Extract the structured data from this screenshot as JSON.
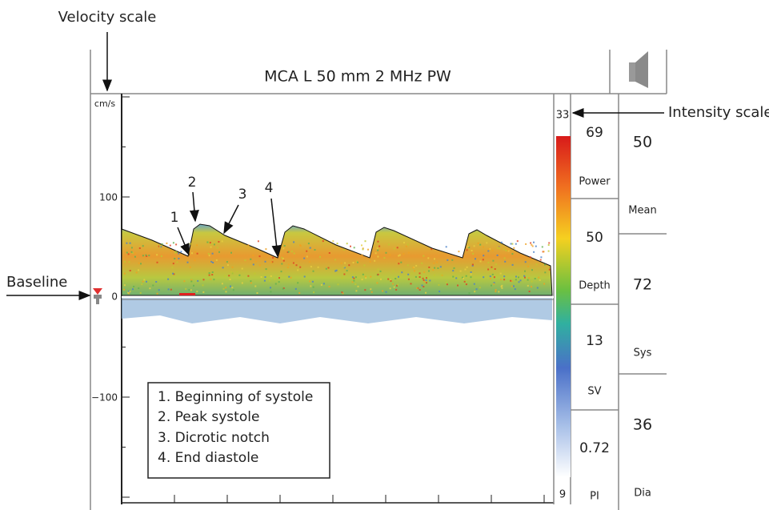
{
  "annotations": {
    "velocity_scale": "Velocity scale",
    "intensity_scale": "Intensity scale",
    "baseline": "Baseline"
  },
  "header": {
    "title": "MCA L 50 mm 2 MHz PW"
  },
  "velocity_axis": {
    "unit": "cm/s",
    "ticks": [
      "100",
      "0",
      "−100"
    ]
  },
  "intensity_scale": {
    "max": "33",
    "min": "9"
  },
  "parameters": [
    {
      "value": "69",
      "label": "Power"
    },
    {
      "value": "50",
      "label": "Depth"
    },
    {
      "value": "13",
      "label": "SV"
    },
    {
      "value": "0.72",
      "label": "PI"
    }
  ],
  "measurements": [
    {
      "value": "50",
      "label": "Mean"
    },
    {
      "value": "72",
      "label": "Sys"
    },
    {
      "value": "36",
      "label": "Dia"
    }
  ],
  "markers": [
    "1",
    "2",
    "3",
    "4"
  ],
  "legend": [
    "1. Beginning of systole",
    "2. Peak systole",
    "3. Dicrotic notch",
    "4. End diastole"
  ]
}
